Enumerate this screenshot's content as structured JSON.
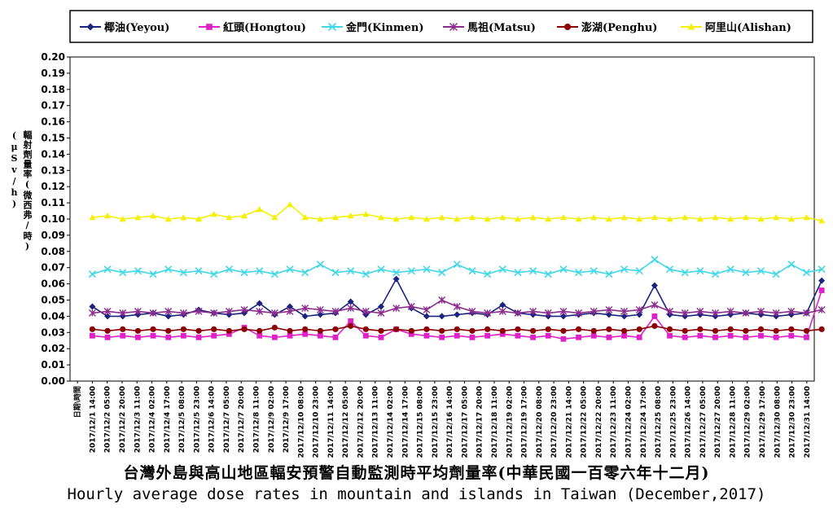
{
  "chart_data": {
    "type": "line",
    "title": "台灣外島與高山地區輻安預警自動監測時平均劑量率(中華民國一百零六年十二月)",
    "subtitle": "Hourly average dose rates in mountain and islands in Taiwan (December,2017)",
    "ylabel_line1": "輻射劑量率(微西弗/時)",
    "ylabel_line2": "(μSv/h)",
    "xlabel": "",
    "ylim": [
      0,
      0.2
    ],
    "ytick_step": 0.01,
    "grid": false,
    "legend_position": "top",
    "x_first_label": "日期\\時間",
    "x": [
      "2017/12/1 14:00",
      "2017/12/2 05:00",
      "2017/12/2 20:00",
      "2017/12/3 11:00",
      "2017/12/4 02:00",
      "2017/12/4 17:00",
      "2017/12/5 08:00",
      "2017/12/5 23:00",
      "2017/12/6 14:00",
      "2017/12/7 05:00",
      "2017/12/7 20:00",
      "2017/12/8 11:00",
      "2017/12/9 02:00",
      "2017/12/9 17:00",
      "2017/12/10 08:00",
      "2017/12/10 23:00",
      "2017/12/11 14:00",
      "2017/12/12 05:00",
      "2017/12/12 20:00",
      "2017/12/13 11:00",
      "2017/12/14 02:00",
      "2017/12/14 17:00",
      "2017/12/15 08:00",
      "2017/12/15 23:00",
      "2017/12/16 14:00",
      "2017/12/17 05:00",
      "2017/12/17 20:00",
      "2017/12/18 11:00",
      "2017/12/19 02:00",
      "2017/12/19 17:00",
      "2017/12/20 08:00",
      "2017/12/20 23:00",
      "2017/12/21 14:00",
      "2017/12/22 05:00",
      "2017/12/22 20:00",
      "2017/12/23 11:00",
      "2017/12/24 02:00",
      "2017/12/24 17:00",
      "2017/12/25 08:00",
      "2017/12/25 23:00",
      "2017/12/26 14:00",
      "2017/12/27 05:00",
      "2017/12/27 20:00",
      "2017/12/28 11:00",
      "2017/12/29 02:00",
      "2017/12/29 17:00",
      "2017/12/30 08:00",
      "2017/12/30 23:00",
      "2017/12/31 14:00"
    ],
    "series": [
      {
        "name": "椰油(Yeyou)",
        "color": "#1a237e",
        "marker": "diamond",
        "values": [
          0.046,
          0.04,
          0.04,
          0.041,
          0.042,
          0.04,
          0.041,
          0.044,
          0.042,
          0.041,
          0.042,
          0.048,
          0.041,
          0.046,
          0.04,
          0.041,
          0.042,
          0.049,
          0.041,
          0.046,
          0.063,
          0.045,
          0.04,
          0.04,
          0.041,
          0.042,
          0.041,
          0.047,
          0.042,
          0.041,
          0.04,
          0.04,
          0.041,
          0.042,
          0.041,
          0.04,
          0.041,
          0.059,
          0.041,
          0.04,
          0.041,
          0.04,
          0.041,
          0.042,
          0.041,
          0.04,
          0.041,
          0.042,
          0.062
        ]
      },
      {
        "name": "紅頭(Hongtou)",
        "color": "#e020c8",
        "marker": "square",
        "values": [
          0.028,
          0.027,
          0.028,
          0.027,
          0.028,
          0.027,
          0.028,
          0.027,
          0.028,
          0.029,
          0.033,
          0.028,
          0.027,
          0.028,
          0.029,
          0.028,
          0.027,
          0.037,
          0.028,
          0.027,
          0.032,
          0.029,
          0.028,
          0.027,
          0.028,
          0.027,
          0.028,
          0.029,
          0.028,
          0.027,
          0.028,
          0.026,
          0.027,
          0.028,
          0.027,
          0.028,
          0.027,
          0.04,
          0.028,
          0.027,
          0.028,
          0.027,
          0.028,
          0.027,
          0.028,
          0.027,
          0.028,
          0.027,
          0.056
        ]
      },
      {
        "name": "金門(Kinmen)",
        "color": "#40d8e8",
        "marker": "x",
        "values": [
          0.066,
          0.069,
          0.067,
          0.068,
          0.066,
          0.069,
          0.067,
          0.068,
          0.066,
          0.069,
          0.067,
          0.068,
          0.066,
          0.069,
          0.067,
          0.072,
          0.067,
          0.068,
          0.066,
          0.069,
          0.067,
          0.068,
          0.069,
          0.067,
          0.072,
          0.068,
          0.066,
          0.069,
          0.067,
          0.068,
          0.066,
          0.069,
          0.067,
          0.068,
          0.066,
          0.069,
          0.068,
          0.075,
          0.069,
          0.067,
          0.068,
          0.066,
          0.069,
          0.067,
          0.068,
          0.066,
          0.072,
          0.067,
          0.069
        ]
      },
      {
        "name": "馬祖(Matsu)",
        "color": "#8b2c8e",
        "marker": "asterisk",
        "values": [
          0.042,
          0.043,
          0.042,
          0.043,
          0.042,
          0.043,
          0.042,
          0.043,
          0.042,
          0.043,
          0.044,
          0.043,
          0.042,
          0.043,
          0.045,
          0.044,
          0.043,
          0.045,
          0.043,
          0.042,
          0.045,
          0.046,
          0.044,
          0.05,
          0.046,
          0.043,
          0.042,
          0.043,
          0.042,
          0.043,
          0.042,
          0.043,
          0.042,
          0.043,
          0.044,
          0.043,
          0.044,
          0.047,
          0.043,
          0.042,
          0.043,
          0.042,
          0.043,
          0.042,
          0.043,
          0.042,
          0.043,
          0.042,
          0.044
        ]
      },
      {
        "name": "澎湖(Penghu)",
        "color": "#8b0000",
        "marker": "circle",
        "values": [
          0.032,
          0.031,
          0.032,
          0.031,
          0.032,
          0.031,
          0.032,
          0.031,
          0.032,
          0.031,
          0.032,
          0.031,
          0.033,
          0.031,
          0.032,
          0.031,
          0.032,
          0.034,
          0.032,
          0.031,
          0.032,
          0.031,
          0.032,
          0.031,
          0.032,
          0.031,
          0.032,
          0.031,
          0.032,
          0.031,
          0.032,
          0.031,
          0.032,
          0.031,
          0.032,
          0.031,
          0.032,
          0.034,
          0.032,
          0.031,
          0.032,
          0.031,
          0.032,
          0.031,
          0.032,
          0.031,
          0.032,
          0.031,
          0.032
        ]
      },
      {
        "name": "阿里山(Alishan)",
        "color": "#f5f000",
        "marker": "triangle",
        "values": [
          0.101,
          0.102,
          0.1,
          0.101,
          0.102,
          0.1,
          0.101,
          0.1,
          0.103,
          0.101,
          0.102,
          0.106,
          0.101,
          0.109,
          0.101,
          0.1,
          0.101,
          0.102,
          0.103,
          0.101,
          0.1,
          0.101,
          0.1,
          0.101,
          0.1,
          0.101,
          0.1,
          0.101,
          0.1,
          0.101,
          0.1,
          0.101,
          0.1,
          0.101,
          0.1,
          0.101,
          0.1,
          0.101,
          0.1,
          0.101,
          0.1,
          0.101,
          0.1,
          0.101,
          0.1,
          0.101,
          0.1,
          0.101,
          0.099
        ]
      }
    ]
  }
}
